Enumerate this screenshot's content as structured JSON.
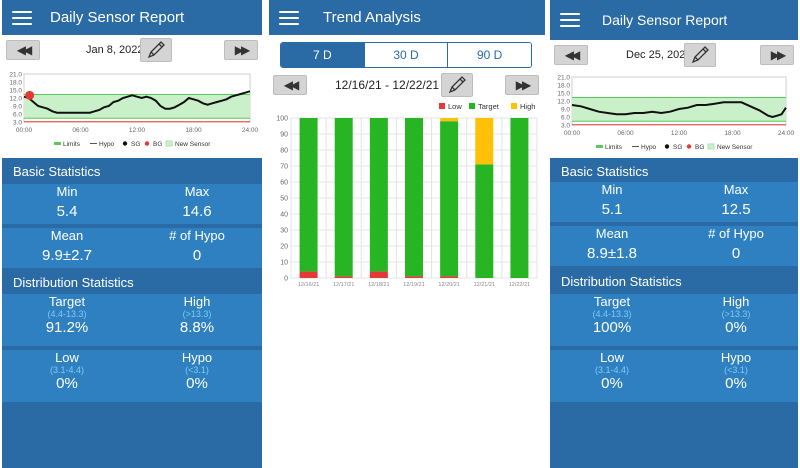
{
  "panels": {
    "left": {
      "title": "Daily Sensor Report",
      "date": "Jan 8, 2022",
      "chart_data": {
        "type": "line",
        "y_ticks": [
          "21.0",
          "18.0",
          "15.0",
          "12.0",
          "9.0",
          "6.0",
          "3.0"
        ],
        "x_ticks": [
          "00:00",
          "06:00",
          "12:00",
          "18:00",
          "24:00"
        ],
        "target_range": [
          4.4,
          13.3
        ],
        "hypo_line": 3.1,
        "legend": [
          "Limits",
          "Hypo",
          "SG",
          "BG",
          "New Sensor"
        ],
        "sg": [
          [
            0,
            12.5
          ],
          [
            0.5,
            12.0
          ],
          [
            1,
            10.5
          ],
          [
            1.5,
            9.0
          ],
          [
            2,
            8.5
          ],
          [
            2.5,
            8.0
          ],
          [
            3,
            7.0
          ],
          [
            3.5,
            6.5
          ],
          [
            4,
            6.5
          ],
          [
            4.5,
            6.5
          ],
          [
            5,
            6.5
          ],
          [
            5.5,
            6.5
          ],
          [
            6,
            6.5
          ],
          [
            6.5,
            6.5
          ],
          [
            7,
            6.5
          ],
          [
            7.5,
            7.0
          ],
          [
            8,
            7.5
          ],
          [
            8.5,
            8.5
          ],
          [
            9,
            9.0
          ],
          [
            9.5,
            10.5
          ],
          [
            10,
            11.0
          ],
          [
            10.5,
            12.0
          ],
          [
            11,
            12.5
          ],
          [
            11.5,
            13.0
          ],
          [
            12,
            12.5
          ],
          [
            12.5,
            12.0
          ],
          [
            13,
            12.5
          ],
          [
            13.5,
            12.0
          ],
          [
            14,
            11.0
          ],
          [
            14.5,
            9.0
          ],
          [
            15,
            8.0
          ],
          [
            15.5,
            8.0
          ],
          [
            16,
            8.5
          ],
          [
            16.5,
            9.5
          ],
          [
            17,
            10.5
          ],
          [
            17.5,
            12.0
          ],
          [
            18,
            11.5
          ],
          [
            18.5,
            11.0
          ],
          [
            19,
            10.0
          ],
          [
            19.5,
            9.5
          ],
          [
            20,
            10.0
          ],
          [
            20.5,
            10.5
          ],
          [
            21,
            11.0
          ],
          [
            21.5,
            11.5
          ],
          [
            22,
            12.5
          ],
          [
            22.5,
            13.0
          ],
          [
            23,
            13.5
          ],
          [
            23.5,
            14.0
          ],
          [
            24,
            14.5
          ]
        ],
        "bg": [
          [
            0.6,
            13.0
          ]
        ]
      },
      "basic_title": "Basic Statistics",
      "min_label": "Min",
      "min_value": "5.4",
      "max_label": "Max",
      "max_value": "14.6",
      "mean_label": "Mean",
      "mean_value": "9.9±2.7",
      "hypo_count_label": "# of Hypo",
      "hypo_count_value": "0",
      "dist_title": "Distribution Statistics",
      "target_label": "Target",
      "target_range": "(4.4-13.3)",
      "target_value": "91.2%",
      "high_label": "High",
      "high_range": "(>13.3)",
      "high_value": "8.8%",
      "low_label": "Low",
      "low_range": "(3.1-4.4)",
      "low_value": "0%",
      "hypo_label": "Hypo",
      "hypo_range": "(<3.1)",
      "hypo_value": "0%"
    },
    "middle": {
      "title": "Trend Analysis",
      "tabs": [
        "7 D",
        "30 D",
        "90 D"
      ],
      "active_tab": "7 D",
      "date_range": "12/16/21 - 12/22/21",
      "chart_data": {
        "type": "bar",
        "stacked": true,
        "categories": [
          "12/16/21",
          "12/17/21",
          "12/18/21",
          "12/19/21",
          "12/20/21",
          "12/21/21",
          "12/22/21"
        ],
        "series": [
          {
            "name": "Low",
            "color": "#e53935",
            "values": [
              4,
              1,
              4,
              1,
              1,
              0,
              0
            ]
          },
          {
            "name": "Target",
            "color": "#27b524",
            "values": [
              96,
              99,
              96,
              99,
              97,
              71,
              100
            ]
          },
          {
            "name": "High",
            "color": "#ffc107",
            "values": [
              0,
              0,
              0,
              0,
              2,
              29,
              0
            ]
          }
        ],
        "y_ticks": [
          "100",
          "90",
          "80",
          "70",
          "60",
          "50",
          "40",
          "30",
          "20",
          "10",
          "0"
        ],
        "ylim": [
          0,
          100
        ],
        "legend_position": "top-right",
        "grid": true
      }
    },
    "right": {
      "title": "Daily Sensor Report",
      "date": "Dec 25, 2021",
      "chart_data": {
        "type": "line",
        "y_ticks": [
          "21.0",
          "18.0",
          "15.0",
          "12.0",
          "9.0",
          "6.0",
          "3.0"
        ],
        "x_ticks": [
          "00:00",
          "06:00",
          "12:00",
          "18:00",
          "24:00"
        ],
        "target_range": [
          4.4,
          13.3
        ],
        "hypo_line": 3.1,
        "legend": [
          "Limits",
          "Hypo",
          "SG",
          "BG",
          "New Sensor"
        ],
        "sg": [
          [
            0,
            10.5
          ],
          [
            1,
            10.0
          ],
          [
            2,
            9.0
          ],
          [
            3,
            8.0
          ],
          [
            4,
            7.5
          ],
          [
            5,
            7.0
          ],
          [
            6,
            7.0
          ],
          [
            7,
            7.5
          ],
          [
            8,
            7.5
          ],
          [
            9,
            8.0
          ],
          [
            10,
            7.5
          ],
          [
            11,
            8.0
          ],
          [
            12,
            9.0
          ],
          [
            13,
            9.5
          ],
          [
            14,
            10.5
          ],
          [
            15,
            10.5
          ],
          [
            16,
            11.0
          ],
          [
            17,
            11.5
          ],
          [
            18,
            11.5
          ],
          [
            19,
            11.5
          ],
          [
            20,
            10.0
          ],
          [
            21,
            8.5
          ],
          [
            22,
            6.5
          ],
          [
            22.5,
            6.0
          ],
          [
            23,
            6.5
          ],
          [
            23.5,
            7.0
          ],
          [
            24,
            9.5
          ]
        ],
        "bg": []
      },
      "basic_title": "Basic Statistics",
      "min_label": "Min",
      "min_value": "5.1",
      "max_label": "Max",
      "max_value": "12.5",
      "mean_label": "Mean",
      "mean_value": "8.9±1.8",
      "hypo_count_label": "# of Hypo",
      "hypo_count_value": "0",
      "dist_title": "Distribution Statistics",
      "target_label": "Target",
      "target_range": "(4.4-13.3)",
      "target_value": "100%",
      "high_label": "High",
      "high_range": "(>13.3)",
      "high_value": "0%",
      "low_label": "Low",
      "low_range": "(3.1-4.4)",
      "low_value": "0%",
      "hypo_label": "Hypo",
      "hypo_range": "(<3.1)",
      "hypo_value": "0%"
    }
  },
  "colors": {
    "app_bar": "#2b6ba5",
    "stat_row": "#2f80c0",
    "target_fill": "#c9f0c9",
    "limit_line": "#59c959",
    "hypo_line": "#e53935",
    "sg_line": "#111111",
    "bg_marker": "#e53935"
  }
}
